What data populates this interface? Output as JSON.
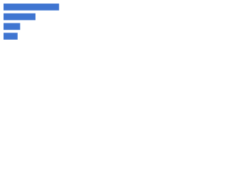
{
  "chart_data": {
    "type": "bar",
    "orientation": "horizontal",
    "categories": [
      null,
      null,
      null,
      null
    ],
    "values": [
      87,
      50,
      26,
      22
    ],
    "color": "#3f75d1",
    "xlim": [
      0,
      100
    ]
  }
}
